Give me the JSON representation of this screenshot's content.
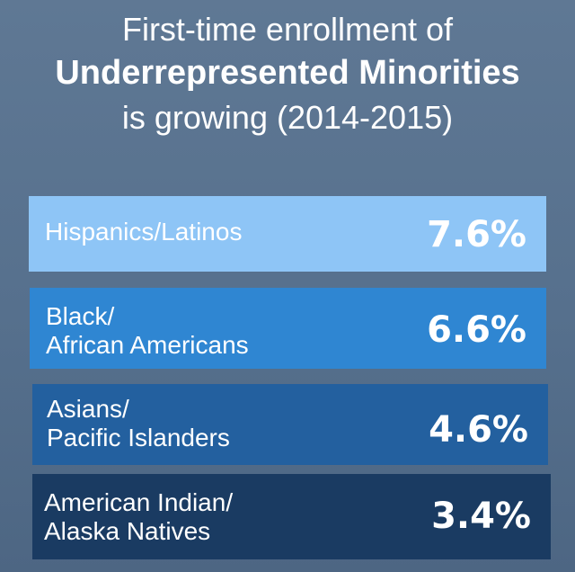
{
  "title": {
    "line1": "First-time enrollment of",
    "line2": "Underrepresented Minorities",
    "line3": "is growing (2014-2015)"
  },
  "chart_data": {
    "type": "table",
    "title": "First-time enrollment of Underrepresented Minorities is growing (2014-2015)",
    "categories": [
      "Hispanics/Latinos",
      "Black/ African Americans",
      "Asians/ Pacific Islanders",
      "American Indian/ Alaska Natives"
    ],
    "series": [
      {
        "values": [
          7.6,
          6.6,
          4.6,
          3.4
        ]
      }
    ],
    "unit": "%"
  },
  "rows": [
    {
      "label": "Hispanics/Latinos",
      "value": "7.6%",
      "color": "#8ec5f6"
    },
    {
      "label": "Black/\nAfrican Americans",
      "value": "6.6%",
      "color": "#2f86d2"
    },
    {
      "label": "Asians/\nPacific Islanders",
      "value": "4.6%",
      "color": "#23609f"
    },
    {
      "label": "American Indian/\nAlaska Natives",
      "value": "3.4%",
      "color": "#1a3b62"
    }
  ]
}
